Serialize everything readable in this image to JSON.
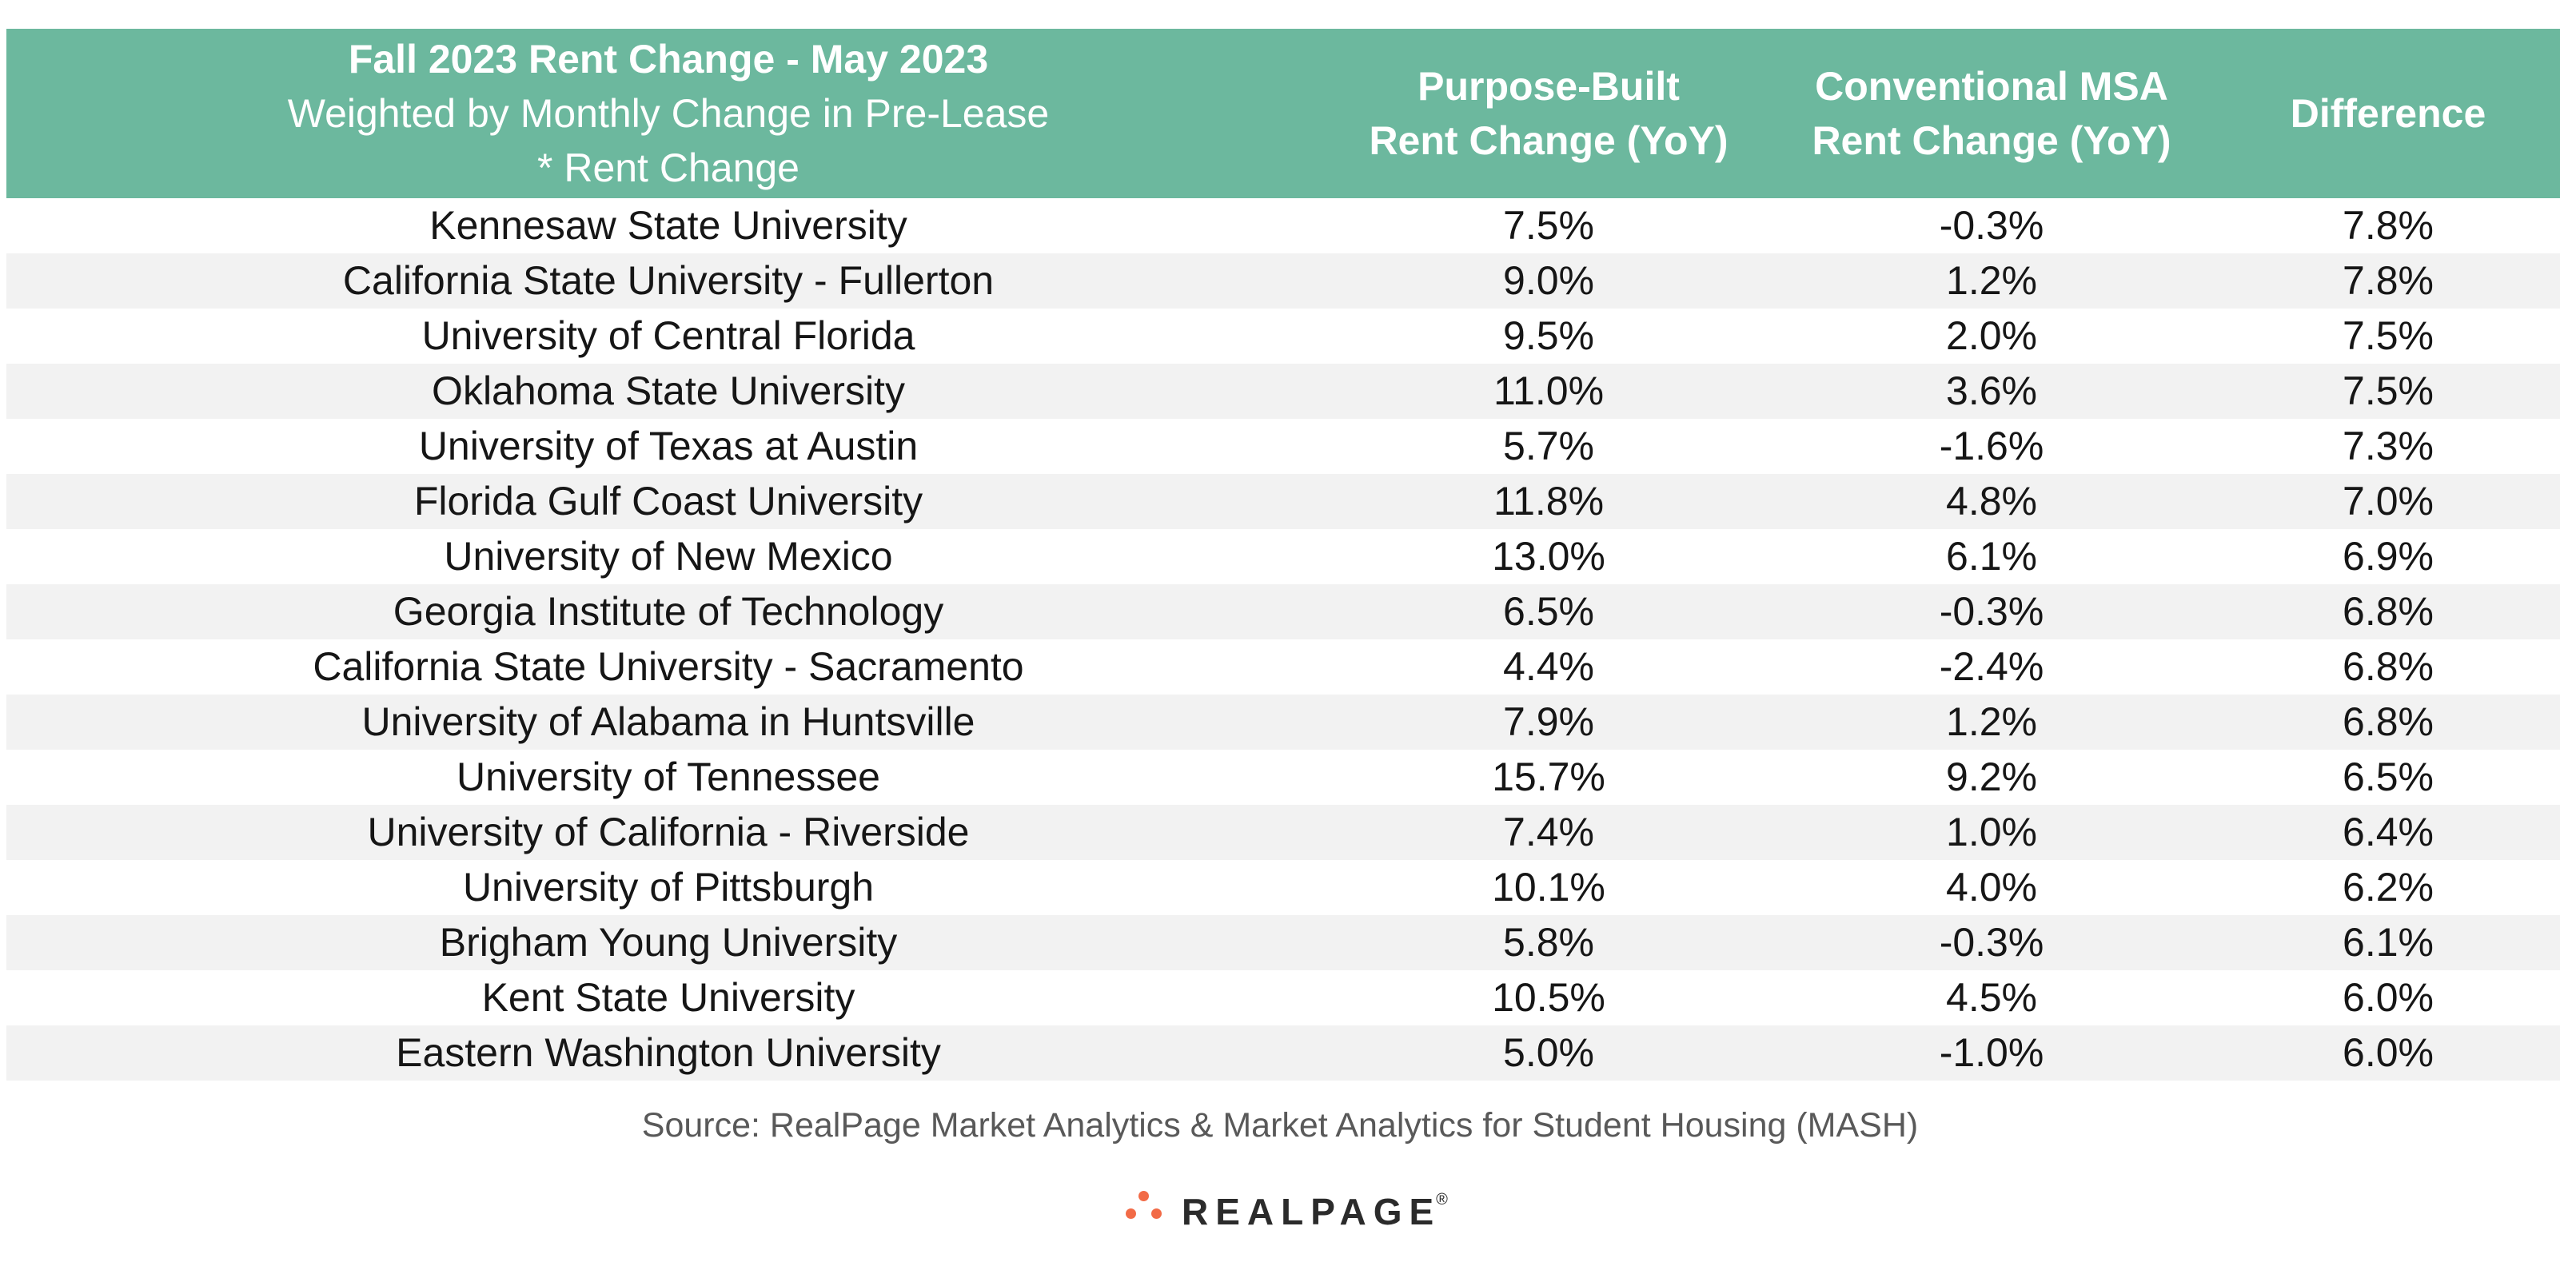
{
  "table": {
    "headers": {
      "school": {
        "title": "Fall 2023 Rent Change - May 2023",
        "subtitle_line1": "Weighted by Monthly Change in Pre-Lease",
        "subtitle_line2": "* Rent Change"
      },
      "purpose_built": {
        "line1": "Purpose-Built",
        "line2": "Rent Change (YoY)"
      },
      "conventional": {
        "line1": "Conventional MSA",
        "line2": "Rent Change (YoY)"
      },
      "difference": {
        "line1": "Difference"
      }
    },
    "rows": [
      {
        "school": "Kennesaw State University",
        "purpose_built": "7.5%",
        "conventional": "-0.3%",
        "difference": "7.8%"
      },
      {
        "school": "California State University - Fullerton",
        "purpose_built": "9.0%",
        "conventional": "1.2%",
        "difference": "7.8%"
      },
      {
        "school": "University of Central Florida",
        "purpose_built": "9.5%",
        "conventional": "2.0%",
        "difference": "7.5%"
      },
      {
        "school": "Oklahoma State University",
        "purpose_built": "11.0%",
        "conventional": "3.6%",
        "difference": "7.5%"
      },
      {
        "school": "University of Texas at Austin",
        "purpose_built": "5.7%",
        "conventional": "-1.6%",
        "difference": "7.3%"
      },
      {
        "school": "Florida Gulf Coast University",
        "purpose_built": "11.8%",
        "conventional": "4.8%",
        "difference": "7.0%"
      },
      {
        "school": "University of New Mexico",
        "purpose_built": "13.0%",
        "conventional": "6.1%",
        "difference": "6.9%"
      },
      {
        "school": "Georgia Institute of Technology",
        "purpose_built": "6.5%",
        "conventional": "-0.3%",
        "difference": "6.8%"
      },
      {
        "school": "California State University - Sacramento",
        "purpose_built": "4.4%",
        "conventional": "-2.4%",
        "difference": "6.8%"
      },
      {
        "school": "University of Alabama in Huntsville",
        "purpose_built": "7.9%",
        "conventional": "1.2%",
        "difference": "6.8%"
      },
      {
        "school": "University of Tennessee",
        "purpose_built": "15.7%",
        "conventional": "9.2%",
        "difference": "6.5%"
      },
      {
        "school": "University of California - Riverside",
        "purpose_built": "7.4%",
        "conventional": "1.0%",
        "difference": "6.4%"
      },
      {
        "school": "University of Pittsburgh",
        "purpose_built": "10.1%",
        "conventional": "4.0%",
        "difference": "6.2%"
      },
      {
        "school": "Brigham Young University",
        "purpose_built": "5.8%",
        "conventional": "-0.3%",
        "difference": "6.1%"
      },
      {
        "school": "Kent State University",
        "purpose_built": "10.5%",
        "conventional": "4.5%",
        "difference": "6.0%"
      },
      {
        "school": "Eastern Washington University",
        "purpose_built": "5.0%",
        "conventional": "-1.0%",
        "difference": "6.0%"
      }
    ]
  },
  "source": "Source: RealPage Market Analytics & Market Analytics for Student Housing (MASH)",
  "logo": {
    "text": "REALPAGE",
    "trademark": "®",
    "dot_color": "#f26b47"
  },
  "colors": {
    "header_bg": "#6cb89e",
    "stripe_bg": "#f2f2f2"
  }
}
